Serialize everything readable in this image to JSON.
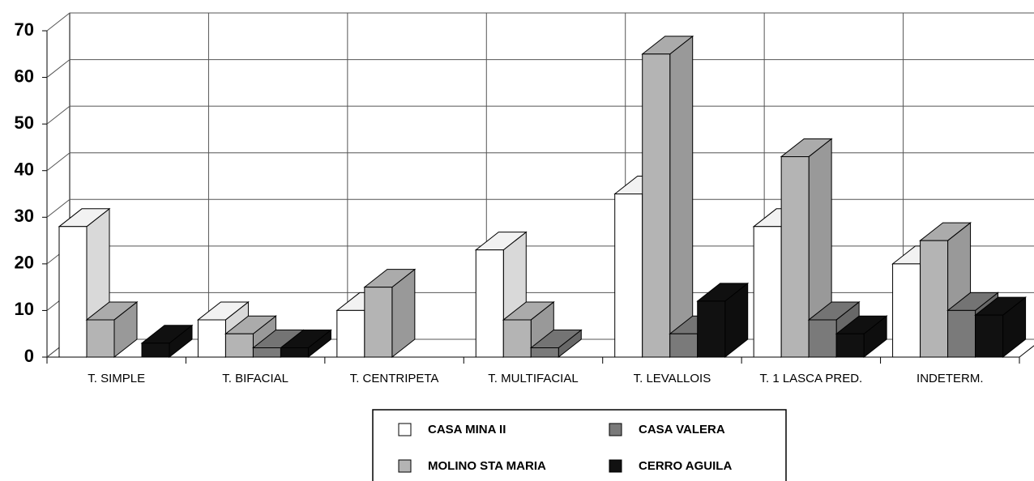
{
  "chart_data": {
    "type": "bar3d",
    "categories": [
      "T. SIMPLE",
      "T. BIFACIAL",
      "T. CENTRIPETA",
      "T. MULTIFACIAL",
      "T. LEVALLOIS",
      "T. 1 LASCA PRED.",
      "INDETERM."
    ],
    "series": [
      {
        "name": "CASA MINA II",
        "color": "#ffffff",
        "values": [
          28,
          8,
          10,
          23,
          35,
          28,
          20
        ]
      },
      {
        "name": "MOLINO STA MARIA",
        "color": "#b4b4b4",
        "values": [
          8,
          5,
          15,
          8,
          65,
          43,
          25
        ]
      },
      {
        "name": "CASA VALERA",
        "color": "#7a7a7a",
        "values": [
          null,
          2,
          null,
          2,
          5,
          8,
          10
        ]
      },
      {
        "name": "CERRO AGUILA",
        "color": "#111111",
        "values": [
          3,
          2,
          null,
          null,
          12,
          5,
          9
        ]
      }
    ],
    "ylim": [
      0,
      70
    ],
    "yticks": [
      0,
      10,
      20,
      30,
      40,
      50,
      60,
      70
    ],
    "grid": true
  }
}
